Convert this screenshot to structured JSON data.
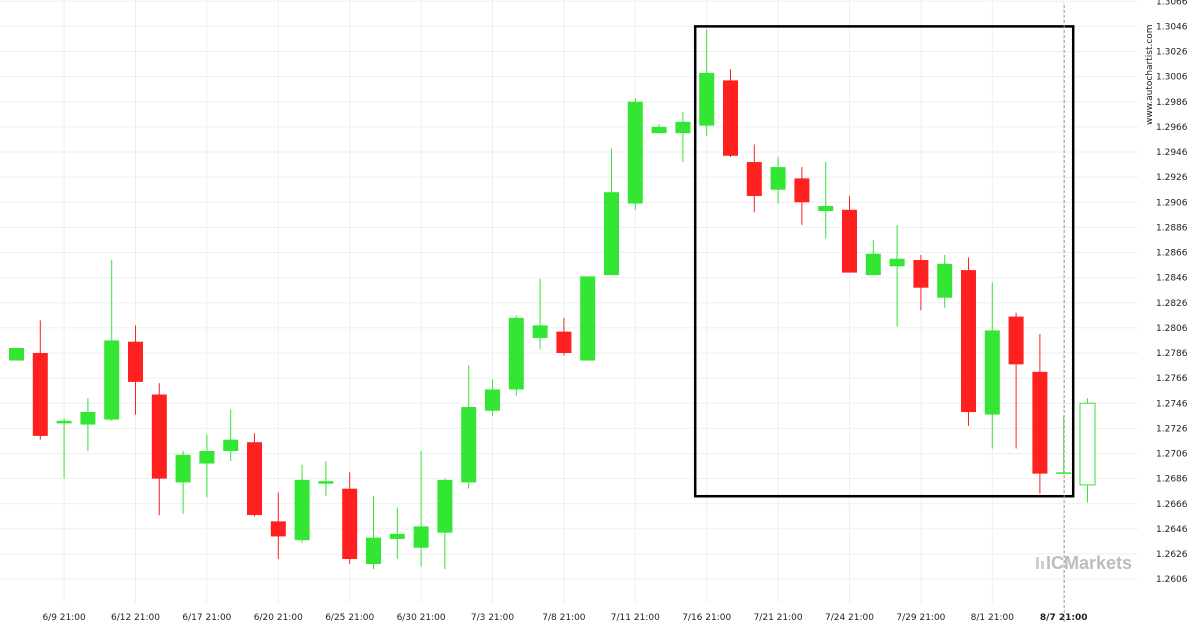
{
  "chart_data": {
    "type": "candlestick",
    "watermark": "www.autochartist.com",
    "brand": "ICMarkets",
    "colors": {
      "up": "#33e633",
      "down": "#ff2020",
      "grid": "#efefef",
      "box": "#000000",
      "last_up": "#ffffff"
    },
    "ylim": [
      1.2587,
      1.3067
    ],
    "y_ticks": [
      1.2606,
      1.2626,
      1.2646,
      1.2666,
      1.2686,
      1.2706,
      1.2726,
      1.2746,
      1.2766,
      1.2786,
      1.2806,
      1.2826,
      1.2846,
      1.2866,
      1.2886,
      1.2906,
      1.2926,
      1.2946,
      1.2966,
      1.2986,
      1.3006,
      1.3026,
      1.3046,
      1.3066
    ],
    "x_labels": [
      {
        "i": 2,
        "label": "6/9 21:00"
      },
      {
        "i": 5,
        "label": "6/12 21:00"
      },
      {
        "i": 8,
        "label": "6/17 21:00"
      },
      {
        "i": 11,
        "label": "6/20 21:00"
      },
      {
        "i": 14,
        "label": "6/25 21:00"
      },
      {
        "i": 17,
        "label": "6/30 21:00"
      },
      {
        "i": 20,
        "label": "7/3 21:00"
      },
      {
        "i": 23,
        "label": "7/8 21:00"
      },
      {
        "i": 26,
        "label": "7/11 21:00"
      },
      {
        "i": 29,
        "label": "7/16 21:00"
      },
      {
        "i": 32,
        "label": "7/21 21:00"
      },
      {
        "i": 35,
        "label": "7/24 21:00"
      },
      {
        "i": 38,
        "label": "7/29 21:00"
      },
      {
        "i": 41,
        "label": "8/1 21:00"
      },
      {
        "i": 44,
        "label": "8/7 21:00"
      }
    ],
    "highlight_label": "8/7 21:00",
    "pattern_box": {
      "start_index": 29,
      "end_index": 44,
      "high": 1.3046,
      "low": 1.2672
    },
    "candles": [
      {
        "o": 1.278,
        "h": 1.279,
        "l": 1.278,
        "c": 1.279
      },
      {
        "o": 1.2786,
        "h": 1.2812,
        "l": 1.2717,
        "c": 1.272
      },
      {
        "o": 1.273,
        "h": 1.2734,
        "l": 1.2686,
        "c": 1.2732
      },
      {
        "o": 1.2729,
        "h": 1.275,
        "l": 1.2708,
        "c": 1.2739
      },
      {
        "o": 1.2733,
        "h": 1.286,
        "l": 1.2732,
        "c": 1.2796
      },
      {
        "o": 1.2795,
        "h": 1.2808,
        "l": 1.2737,
        "c": 1.2763
      },
      {
        "o": 1.2753,
        "h": 1.2762,
        "l": 1.2657,
        "c": 1.2686
      },
      {
        "o": 1.2683,
        "h": 1.2708,
        "l": 1.2658,
        "c": 1.2705
      },
      {
        "o": 1.2698,
        "h": 1.2721,
        "l": 1.2671,
        "c": 1.2708
      },
      {
        "o": 1.2708,
        "h": 1.2741,
        "l": 1.27,
        "c": 1.2717
      },
      {
        "o": 1.2715,
        "h": 1.2722,
        "l": 1.2656,
        "c": 1.2657
      },
      {
        "o": 1.2652,
        "h": 1.2675,
        "l": 1.2622,
        "c": 1.264
      },
      {
        "o": 1.2637,
        "h": 1.2697,
        "l": 1.2635,
        "c": 1.2685
      },
      {
        "o": 1.2682,
        "h": 1.27,
        "l": 1.2672,
        "c": 1.2684
      },
      {
        "o": 1.2678,
        "h": 1.2691,
        "l": 1.2618,
        "c": 1.2622
      },
      {
        "o": 1.2618,
        "h": 1.2672,
        "l": 1.2614,
        "c": 1.2639
      },
      {
        "o": 1.2638,
        "h": 1.2663,
        "l": 1.2622,
        "c": 1.2642
      },
      {
        "o": 1.2631,
        "h": 1.2708,
        "l": 1.2616,
        "c": 1.2648
      },
      {
        "o": 1.2643,
        "h": 1.2686,
        "l": 1.2614,
        "c": 1.2685
      },
      {
        "o": 1.2683,
        "h": 1.2776,
        "l": 1.2678,
        "c": 1.2743
      },
      {
        "o": 1.274,
        "h": 1.2765,
        "l": 1.2736,
        "c": 1.2757
      },
      {
        "o": 1.2757,
        "h": 1.2816,
        "l": 1.2752,
        "c": 1.2814
      },
      {
        "o": 1.2798,
        "h": 1.2845,
        "l": 1.2789,
        "c": 1.2808
      },
      {
        "o": 1.2803,
        "h": 1.2814,
        "l": 1.2784,
        "c": 1.2786
      },
      {
        "o": 1.278,
        "h": 1.2847,
        "l": 1.278,
        "c": 1.2847
      },
      {
        "o": 1.2848,
        "h": 1.2949,
        "l": 1.2848,
        "c": 1.2914
      },
      {
        "o": 1.2905,
        "h": 1.2989,
        "l": 1.29,
        "c": 1.2986
      },
      {
        "o": 1.2961,
        "h": 1.2968,
        "l": 1.2961,
        "c": 1.2966
      },
      {
        "o": 1.2961,
        "h": 1.2978,
        "l": 1.2938,
        "c": 1.297
      },
      {
        "o": 1.2967,
        "h": 1.3044,
        "l": 1.2959,
        "c": 1.3009
      },
      {
        "o": 1.3003,
        "h": 1.3012,
        "l": 1.2942,
        "c": 1.2943
      },
      {
        "o": 1.2938,
        "h": 1.2952,
        "l": 1.2898,
        "c": 1.2911
      },
      {
        "o": 1.2916,
        "h": 1.2942,
        "l": 1.2905,
        "c": 1.2934
      },
      {
        "o": 1.2925,
        "h": 1.2934,
        "l": 1.2888,
        "c": 1.2906
      },
      {
        "o": 1.2899,
        "h": 1.2938,
        "l": 1.2877,
        "c": 1.2903
      },
      {
        "o": 1.29,
        "h": 1.2911,
        "l": 1.285,
        "c": 1.285
      },
      {
        "o": 1.2848,
        "h": 1.2876,
        "l": 1.2848,
        "c": 1.2865
      },
      {
        "o": 1.2855,
        "h": 1.2888,
        "l": 1.2807,
        "c": 1.2861
      },
      {
        "o": 1.286,
        "h": 1.2864,
        "l": 1.282,
        "c": 1.2838
      },
      {
        "o": 1.283,
        "h": 1.2864,
        "l": 1.2822,
        "c": 1.2857
      },
      {
        "o": 1.2852,
        "h": 1.2862,
        "l": 1.2728,
        "c": 1.2739
      },
      {
        "o": 1.2737,
        "h": 1.2842,
        "l": 1.271,
        "c": 1.2804
      },
      {
        "o": 1.2815,
        "h": 1.2818,
        "l": 1.271,
        "c": 1.2777
      },
      {
        "o": 1.2771,
        "h": 1.2801,
        "l": 1.2674,
        "c": 1.269
      },
      {
        "o": 1.269,
        "h": 1.2736,
        "l": 1.269,
        "c": 1.2691
      },
      {
        "o": 1.2681,
        "h": 1.275,
        "l": 1.2667,
        "c": 1.2746
      }
    ]
  }
}
